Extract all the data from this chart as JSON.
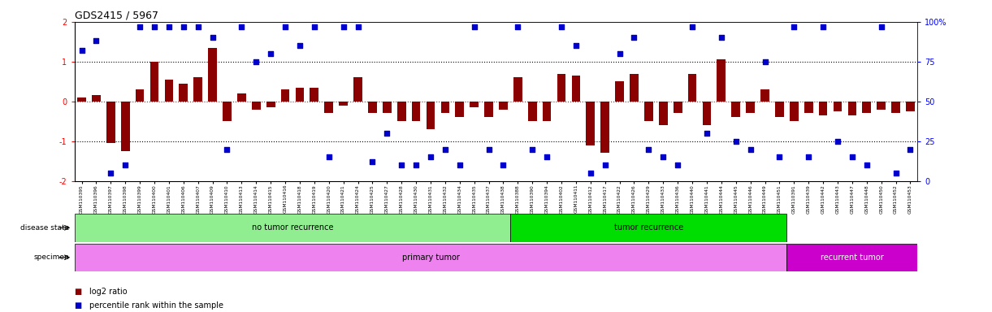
{
  "title": "GDS2415 / 5967",
  "samples": [
    "GSM110395",
    "GSM110396",
    "GSM110397",
    "GSM110398",
    "GSM110399",
    "GSM110400",
    "GSM110401",
    "GSM110406",
    "GSM110407",
    "GSM110409",
    "GSM110410",
    "GSM110413",
    "GSM110414",
    "GSM110415",
    "GSM110416",
    "GSM110418",
    "GSM110419",
    "GSM110420",
    "GSM110421",
    "GSM110424",
    "GSM110425",
    "GSM110427",
    "GSM110428",
    "GSM110430",
    "GSM110431",
    "GSM110432",
    "GSM110434",
    "GSM110435",
    "GSM110437",
    "GSM110438",
    "GSM110388",
    "GSM110390",
    "GSM110394",
    "GSM110402",
    "GSM110411",
    "GSM110412",
    "GSM110417",
    "GSM110422",
    "GSM110426",
    "GSM110429",
    "GSM110433",
    "GSM110436",
    "GSM110440",
    "GSM110441",
    "GSM110444",
    "GSM110445",
    "GSM110446",
    "GSM110449",
    "GSM110451",
    "GSM110391",
    "GSM110439",
    "GSM110442",
    "GSM110443",
    "GSM110447",
    "GSM110448",
    "GSM110450",
    "GSM110452",
    "GSM110453"
  ],
  "log2_ratio": [
    0.1,
    0.15,
    -1.05,
    -1.25,
    0.3,
    1.0,
    0.55,
    0.45,
    0.6,
    1.35,
    -0.5,
    0.2,
    -0.2,
    -0.15,
    0.3,
    0.35,
    0.35,
    -0.3,
    -0.1,
    0.6,
    -0.3,
    -0.3,
    -0.5,
    -0.5,
    -0.7,
    -0.3,
    -0.4,
    -0.15,
    -0.4,
    -0.2,
    0.6,
    -0.5,
    -0.5,
    0.7,
    0.65,
    -1.1,
    -1.3,
    0.5,
    0.7,
    -0.5,
    -0.6,
    -0.3,
    0.7,
    -0.6,
    1.05,
    -0.4,
    -0.3,
    0.3,
    -0.4,
    -0.5,
    -0.3,
    -0.35,
    -0.25,
    -0.35,
    -0.3,
    -0.2,
    -0.3,
    -0.25
  ],
  "percentile": [
    82,
    88,
    5,
    10,
    97,
    97,
    97,
    97,
    97,
    90,
    20,
    97,
    75,
    80,
    97,
    85,
    97,
    15,
    97,
    97,
    12,
    30,
    10,
    10,
    15,
    20,
    10,
    97,
    20,
    10,
    97,
    20,
    15,
    97,
    85,
    5,
    10,
    80,
    90,
    20,
    15,
    10,
    97,
    30,
    90,
    25,
    20,
    75,
    15,
    97,
    15,
    97,
    25,
    15,
    10,
    97,
    5,
    20
  ],
  "no_tumor_recurrence_count": 30,
  "tumor_recurrence_count": 19,
  "primary_tumor_count": 49,
  "recurrent_tumor_count": 9,
  "bar_color": "#8B0000",
  "scatter_color": "#0000CD",
  "no_recur_color": "#90EE90",
  "recur_color": "#00DD00",
  "primary_color": "#EE82EE",
  "recurrent_color": "#CC00CC",
  "background_color": "#ffffff",
  "ylim_left": [
    -2,
    2
  ],
  "ylim_right": [
    0,
    100
  ]
}
